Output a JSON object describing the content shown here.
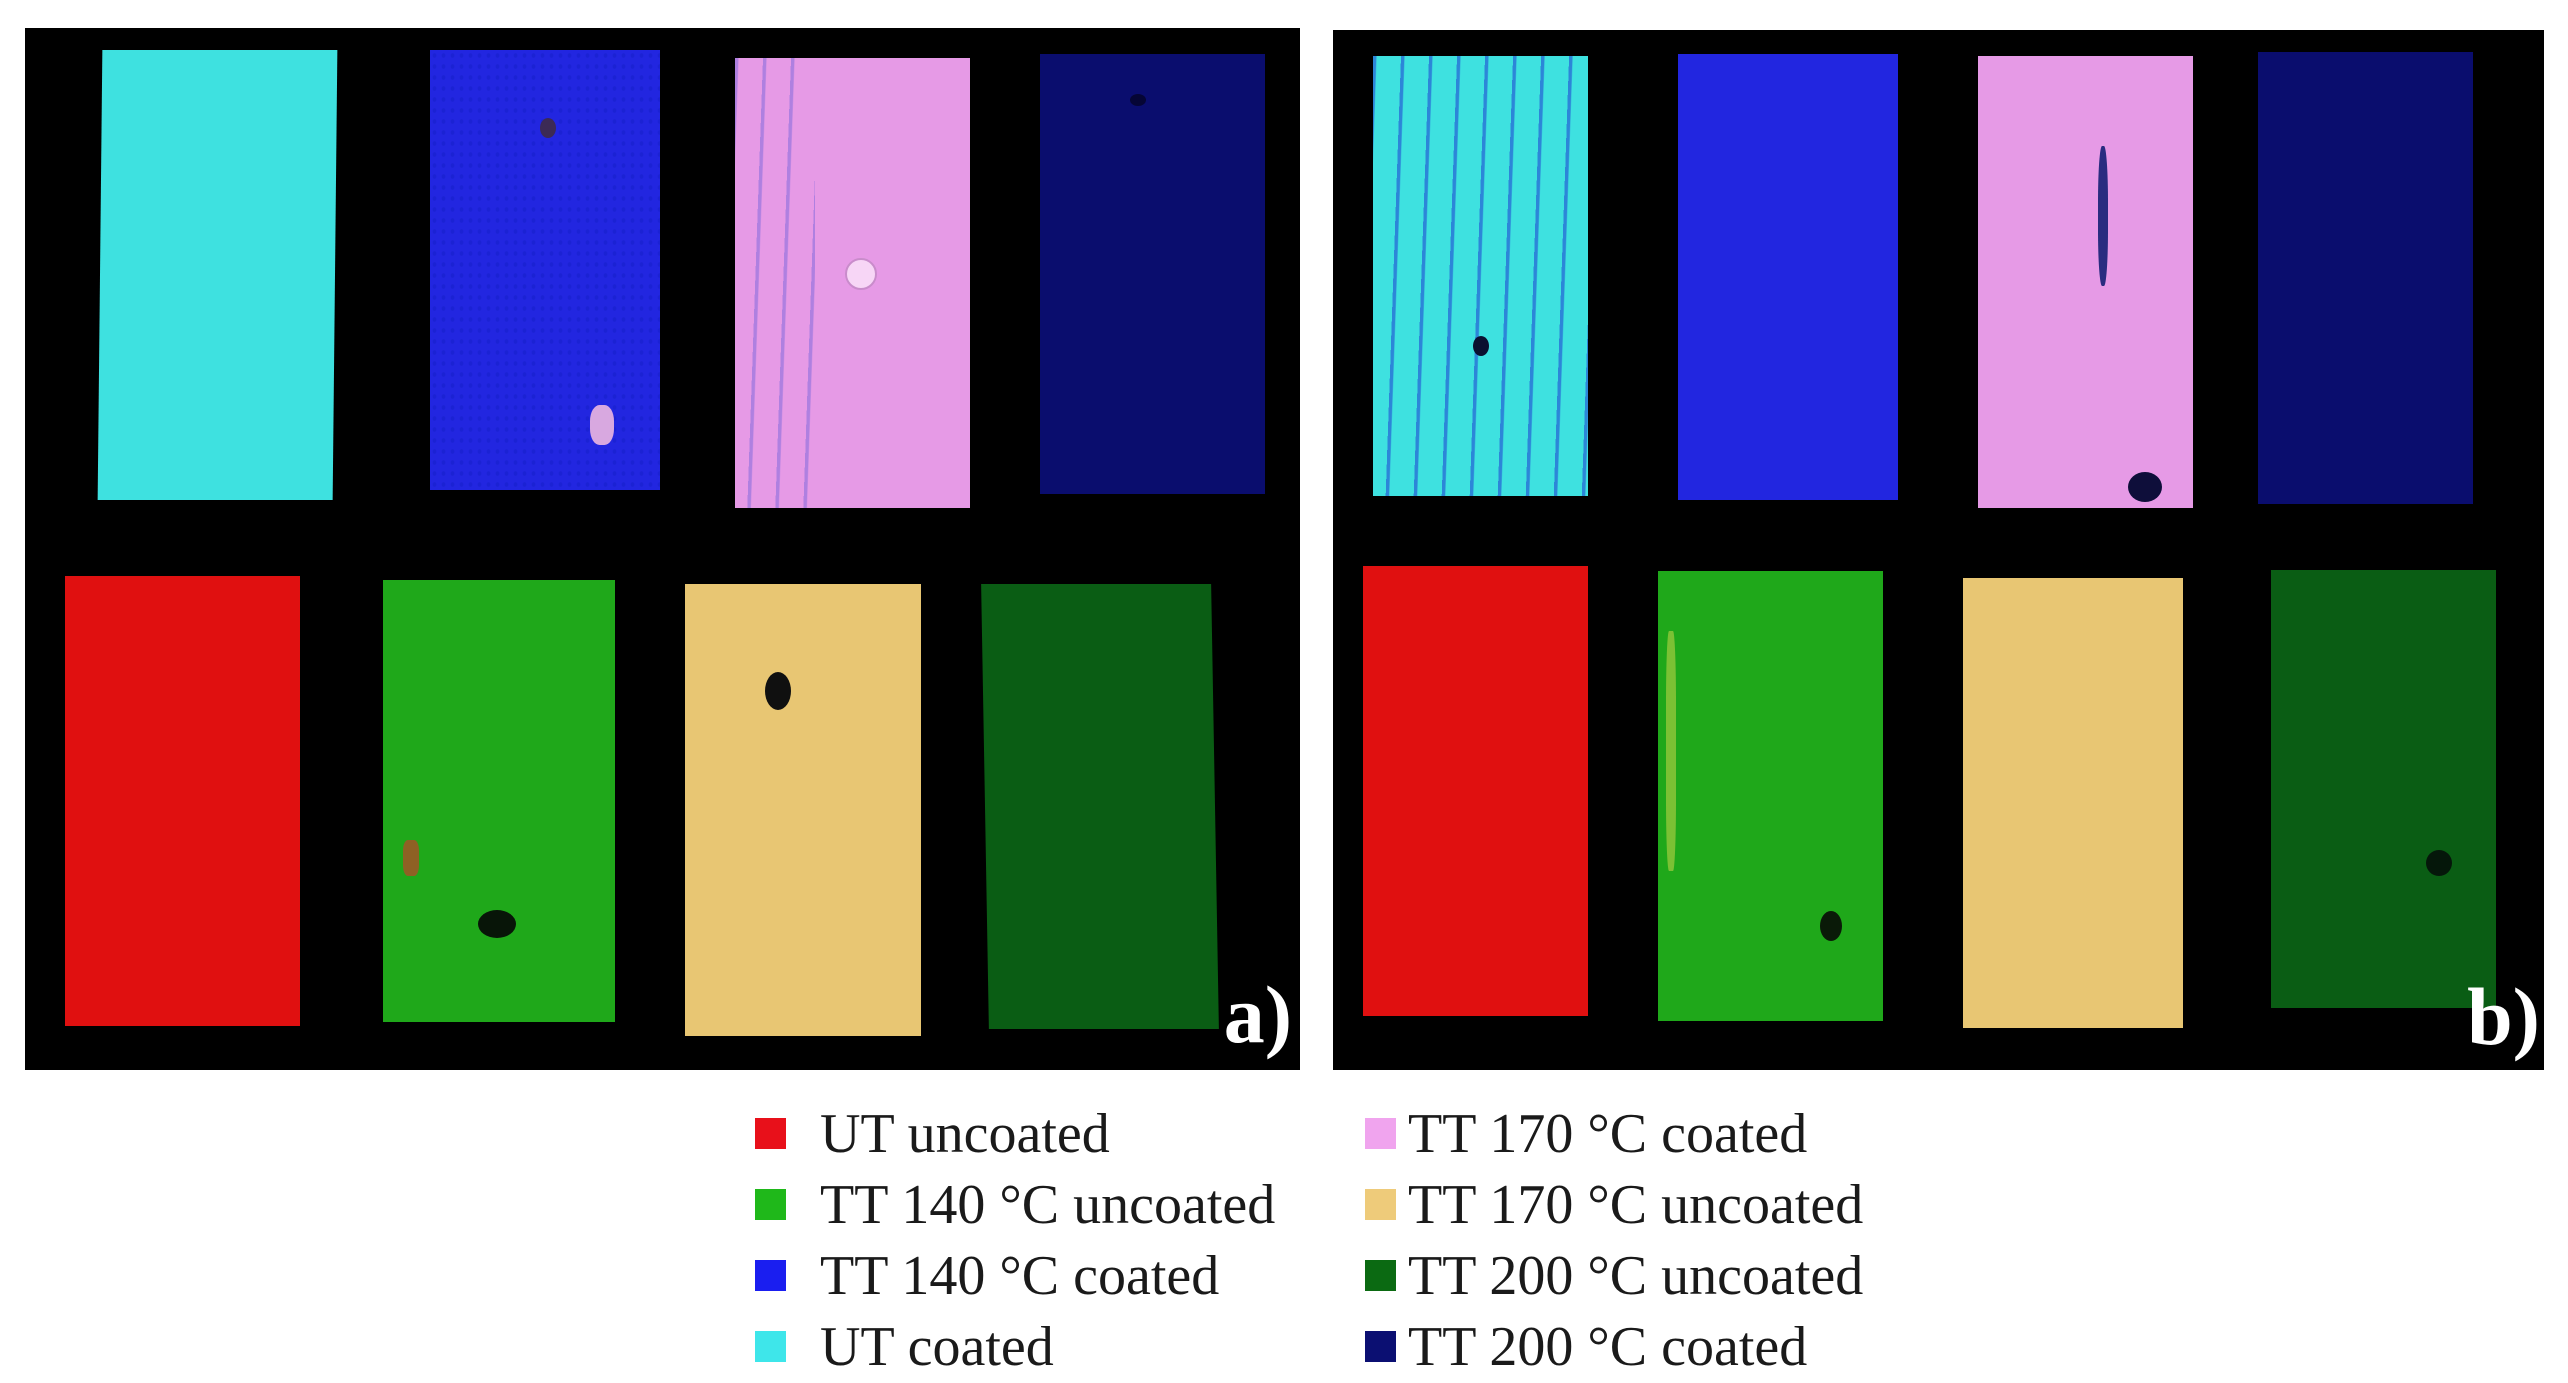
{
  "panels": [
    {
      "id": "a",
      "label": "a)",
      "samples": [
        {
          "name": "UT coated",
          "color": "#3ee1e0",
          "row": 1,
          "col": 1
        },
        {
          "name": "TT 140 °C coated",
          "color": "#2226e0",
          "row": 1,
          "col": 2
        },
        {
          "name": "TT 170 °C coated",
          "color": "#e69ae6",
          "row": 1,
          "col": 3
        },
        {
          "name": "TT 200 °C coated",
          "color": "#0a0d6e",
          "row": 1,
          "col": 4
        },
        {
          "name": "UT uncoated",
          "color": "#e01010",
          "row": 2,
          "col": 1
        },
        {
          "name": "TT 140 °C uncoated",
          "color": "#1fa81a",
          "row": 2,
          "col": 2
        },
        {
          "name": "TT 170 °C uncoated",
          "color": "#e8c673",
          "row": 2,
          "col": 3
        },
        {
          "name": "TT 200 °C uncoated",
          "color": "#0a5d14",
          "row": 2,
          "col": 4
        }
      ]
    },
    {
      "id": "b",
      "label": "b)",
      "samples": [
        {
          "name": "UT coated",
          "color": "#3ee1e0",
          "row": 1,
          "col": 1
        },
        {
          "name": "TT 140 °C coated",
          "color": "#2226e0",
          "row": 1,
          "col": 2
        },
        {
          "name": "TT 170 °C coated",
          "color": "#e69ae6",
          "row": 1,
          "col": 3
        },
        {
          "name": "TT 200 °C coated",
          "color": "#0a0d6e",
          "row": 1,
          "col": 4
        },
        {
          "name": "UT uncoated",
          "color": "#e01010",
          "row": 2,
          "col": 1
        },
        {
          "name": "TT 140 °C uncoated",
          "color": "#1fa81a",
          "row": 2,
          "col": 2
        },
        {
          "name": "TT 170 °C uncoated",
          "color": "#e8c673",
          "row": 2,
          "col": 3
        },
        {
          "name": "TT 200 °C uncoated",
          "color": "#0a5d14",
          "row": 2,
          "col": 4
        }
      ]
    }
  ],
  "legend": {
    "left": [
      {
        "label": "UT uncoated",
        "color": "#e8101a"
      },
      {
        "label": "TT 140 °C uncoated",
        "color": "#1fb81a"
      },
      {
        "label": "TT 140 °C coated",
        "color": "#1a1ef0"
      },
      {
        "label": "UT coated",
        "color": "#3ee6ea"
      }
    ],
    "right": [
      {
        "label": "TT 170 °C coated",
        "color": "#f0a4ee"
      },
      {
        "label": "TT 170 °C uncoated",
        "color": "#eecb7a"
      },
      {
        "label": "TT 200 °C uncoated",
        "color": "#0b6a12"
      },
      {
        "label": "TT 200 °C coated",
        "color": "#0b0f72"
      }
    ]
  }
}
